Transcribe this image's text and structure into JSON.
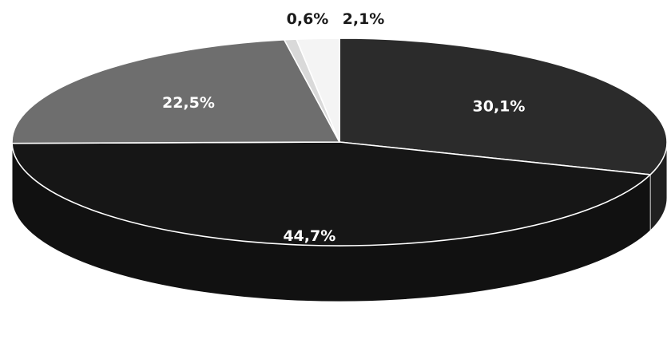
{
  "chart_data": {
    "type": "pie",
    "style": "3d-tilted",
    "slices": [
      {
        "label": "30,1%",
        "value": 30.1,
        "color": "#2b2b2b",
        "label_color": "#ffffff"
      },
      {
        "label": "44,7%",
        "value": 44.7,
        "color": "#161616",
        "label_color": "#ffffff"
      },
      {
        "label": "22,5%",
        "value": 22.5,
        "color": "#6e6e6e",
        "label_color": "#ffffff"
      },
      {
        "label": "0,6%",
        "value": 0.6,
        "color": "#d9d9d9",
        "label_color": "#1a1a1a"
      },
      {
        "label": "2,1%",
        "value": 2.1,
        "color": "#f4f4f4",
        "label_color": "#1a1a1a"
      }
    ],
    "legend": "none",
    "title": ""
  }
}
